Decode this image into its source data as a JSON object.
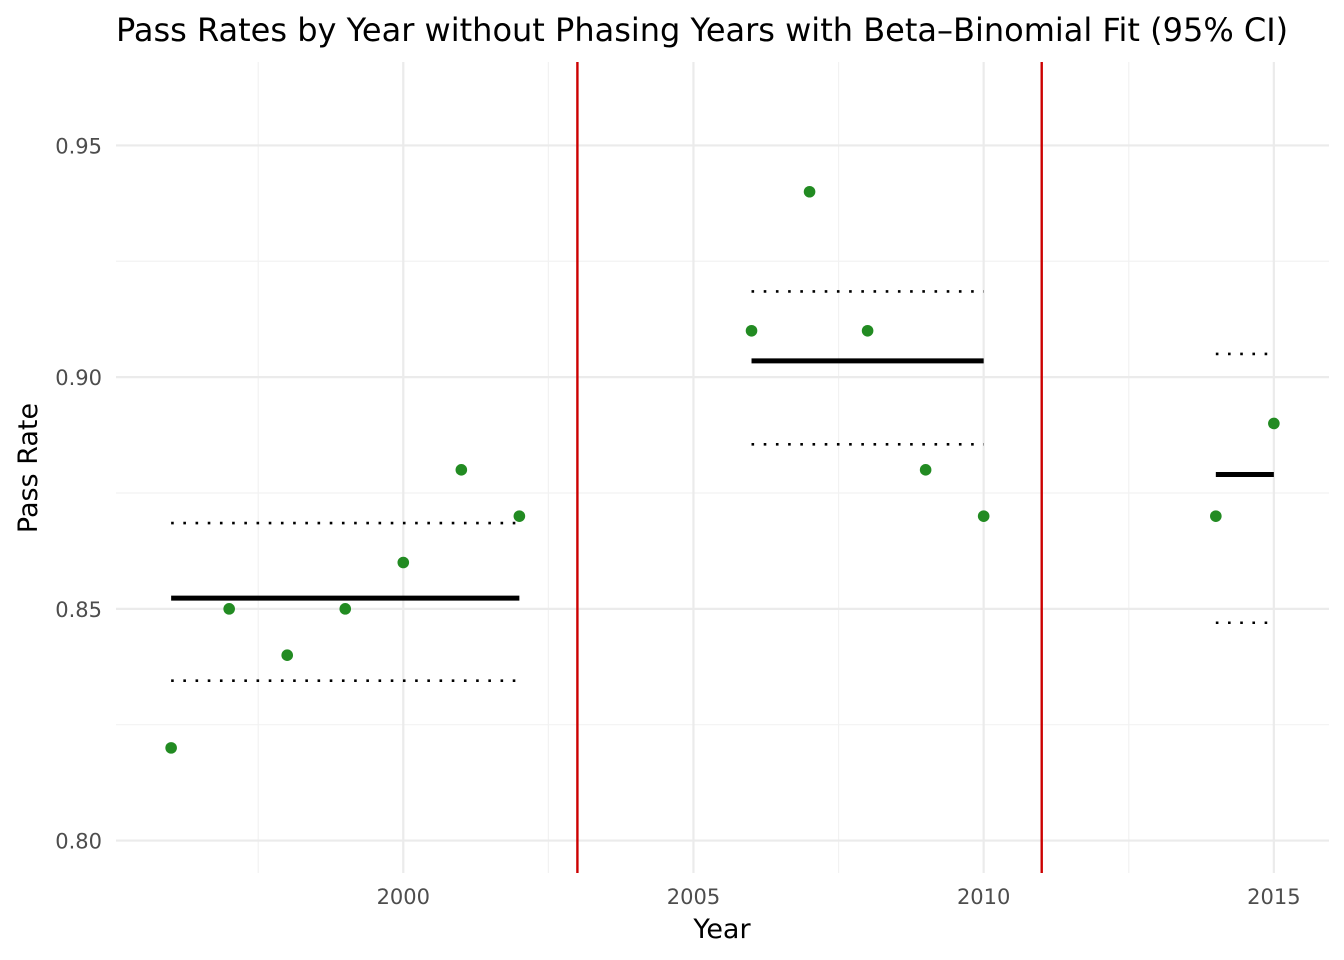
{
  "chart_data": {
    "type": "scatter",
    "title": "Pass Rates by Year without Phasing Years with Beta–Binomial Fit (95% CI)",
    "xlabel": "Year",
    "ylabel": "Pass Rate",
    "xlim": [
      1995.05,
      2015.95
    ],
    "ylim": [
      0.793,
      0.968
    ],
    "x_ticks": [
      2000,
      2005,
      2010,
      2015
    ],
    "x_tick_labels": [
      "2000",
      "2005",
      "2010",
      "2015"
    ],
    "x_minor_ticks": [
      1997.5,
      2002.5,
      2007.5,
      2012.5
    ],
    "y_ticks": [
      0.8,
      0.85,
      0.9,
      0.95
    ],
    "y_tick_labels": [
      "0.80",
      "0.85",
      "0.90",
      "0.95"
    ],
    "y_minor_ticks": [
      0.825,
      0.875,
      0.925
    ],
    "grid": true,
    "legend": "none",
    "colors": {
      "points": "#228b22",
      "fit": "#000000",
      "phase_break": "#cc0000"
    },
    "points": [
      {
        "x": 1996,
        "y": 0.82
      },
      {
        "x": 1997,
        "y": 0.85
      },
      {
        "x": 1998,
        "y": 0.84
      },
      {
        "x": 1999,
        "y": 0.85
      },
      {
        "x": 2000,
        "y": 0.86
      },
      {
        "x": 2001,
        "y": 0.88
      },
      {
        "x": 2002,
        "y": 0.87
      },
      {
        "x": 2006,
        "y": 0.91
      },
      {
        "x": 2007,
        "y": 0.94
      },
      {
        "x": 2008,
        "y": 0.91
      },
      {
        "x": 2009,
        "y": 0.88
      },
      {
        "x": 2010,
        "y": 0.87
      },
      {
        "x": 2014,
        "y": 0.87
      },
      {
        "x": 2015,
        "y": 0.89
      }
    ],
    "fits": [
      {
        "x_start": 1996,
        "x_end": 2002,
        "mean": 0.8523,
        "lower": 0.8345,
        "upper": 0.8685
      },
      {
        "x_start": 2006,
        "x_end": 2010,
        "mean": 0.9035,
        "lower": 0.8855,
        "upper": 0.9185
      },
      {
        "x_start": 2014,
        "x_end": 2015,
        "mean": 0.879,
        "lower": 0.847,
        "upper": 0.905
      }
    ],
    "phase_breaks": [
      2003,
      2011
    ]
  }
}
